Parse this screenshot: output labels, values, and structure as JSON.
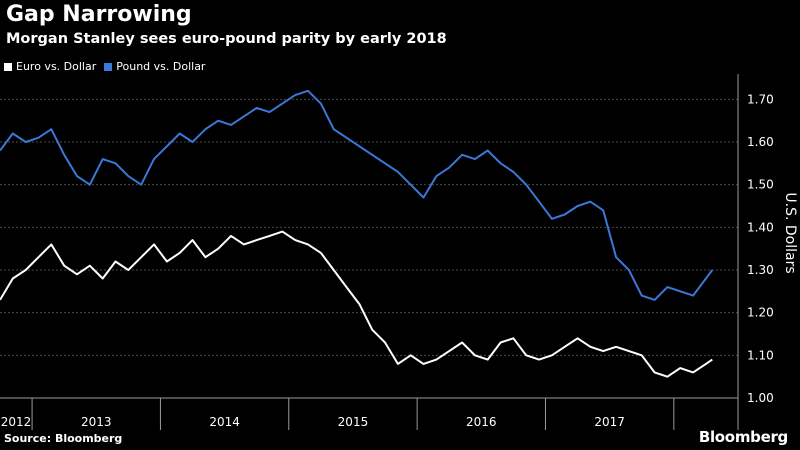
{
  "header": {
    "title": "Gap Narrowing",
    "subtitle": "Morgan Stanley sees euro-pound parity by early 2018"
  },
  "footer": {
    "source": "Source: Bloomberg",
    "brand": "Bloomberg"
  },
  "colors": {
    "background": "#000000",
    "euro": "#ffffff",
    "pound": "#3b78d8",
    "grid": "#4a4a4a"
  },
  "chart_data": {
    "type": "line",
    "title": "Gap Narrowing",
    "subtitle": "Morgan Stanley sees euro-pound parity by early 2018",
    "ylabel": "U.S. Dollars",
    "ylabel_position": "right",
    "ylim": [
      1.0,
      1.75
    ],
    "yticks": [
      "1.00",
      "1.10",
      "1.20",
      "1.30",
      "1.40",
      "1.50",
      "1.60",
      "1.70"
    ],
    "xlim": [
      2011.75,
      2017.5
    ],
    "xticks": [
      {
        "label": "2012",
        "pos": 2011.875
      },
      {
        "label": "2013",
        "pos": 2012.5
      },
      {
        "label": "2014",
        "pos": 2013.5
      },
      {
        "label": "2015",
        "pos": 2014.5
      },
      {
        "label": "2016",
        "pos": 2015.5
      },
      {
        "label": "2017",
        "pos": 2016.5
      }
    ],
    "year_boundaries": [
      2012,
      2013,
      2014,
      2015,
      2016,
      2017
    ],
    "grid": true,
    "legend_position": "top-left",
    "series": [
      {
        "name": "Euro vs. Dollar",
        "color": "#ffffff",
        "x": [
          2011.75,
          2011.85,
          2011.95,
          2012.05,
          2012.15,
          2012.25,
          2012.35,
          2012.45,
          2012.55,
          2012.65,
          2012.75,
          2012.85,
          2012.95,
          2013.05,
          2013.15,
          2013.25,
          2013.35,
          2013.45,
          2013.55,
          2013.65,
          2013.75,
          2013.85,
          2013.95,
          2014.05,
          2014.15,
          2014.25,
          2014.35,
          2014.45,
          2014.55,
          2014.65,
          2014.75,
          2014.85,
          2014.95,
          2015.05,
          2015.15,
          2015.25,
          2015.35,
          2015.45,
          2015.55,
          2015.65,
          2015.75,
          2015.85,
          2015.95,
          2016.05,
          2016.15,
          2016.25,
          2016.35,
          2016.45,
          2016.55,
          2016.65,
          2016.75,
          2016.85,
          2016.95,
          2017.05,
          2017.15,
          2017.25,
          2017.3
        ],
        "values": [
          1.23,
          1.28,
          1.3,
          1.33,
          1.36,
          1.31,
          1.29,
          1.31,
          1.28,
          1.32,
          1.3,
          1.33,
          1.36,
          1.32,
          1.34,
          1.37,
          1.33,
          1.35,
          1.38,
          1.36,
          1.37,
          1.38,
          1.39,
          1.37,
          1.36,
          1.34,
          1.3,
          1.26,
          1.22,
          1.16,
          1.13,
          1.08,
          1.1,
          1.08,
          1.09,
          1.11,
          1.13,
          1.1,
          1.09,
          1.13,
          1.14,
          1.1,
          1.09,
          1.1,
          1.12,
          1.14,
          1.12,
          1.11,
          1.12,
          1.11,
          1.1,
          1.06,
          1.05,
          1.07,
          1.06,
          1.08,
          1.09
        ]
      },
      {
        "name": "Pound vs. Dollar",
        "color": "#3b78d8",
        "x": [
          2011.75,
          2011.85,
          2011.95,
          2012.05,
          2012.15,
          2012.25,
          2012.35,
          2012.45,
          2012.55,
          2012.65,
          2012.75,
          2012.85,
          2012.95,
          2013.05,
          2013.15,
          2013.25,
          2013.35,
          2013.45,
          2013.55,
          2013.65,
          2013.75,
          2013.85,
          2013.95,
          2014.05,
          2014.15,
          2014.25,
          2014.35,
          2014.45,
          2014.55,
          2014.65,
          2014.75,
          2014.85,
          2014.95,
          2015.05,
          2015.15,
          2015.25,
          2015.35,
          2015.45,
          2015.55,
          2015.65,
          2015.75,
          2015.85,
          2015.95,
          2016.05,
          2016.15,
          2016.25,
          2016.35,
          2016.45,
          2016.55,
          2016.65,
          2016.75,
          2016.85,
          2016.95,
          2017.05,
          2017.15,
          2017.25,
          2017.3
        ],
        "values": [
          1.58,
          1.62,
          1.6,
          1.61,
          1.63,
          1.57,
          1.52,
          1.5,
          1.56,
          1.55,
          1.52,
          1.5,
          1.56,
          1.59,
          1.62,
          1.6,
          1.63,
          1.65,
          1.64,
          1.66,
          1.68,
          1.67,
          1.69,
          1.71,
          1.72,
          1.69,
          1.63,
          1.61,
          1.59,
          1.57,
          1.55,
          1.53,
          1.5,
          1.47,
          1.52,
          1.54,
          1.57,
          1.56,
          1.58,
          1.55,
          1.53,
          1.5,
          1.46,
          1.42,
          1.43,
          1.45,
          1.46,
          1.44,
          1.33,
          1.3,
          1.24,
          1.23,
          1.26,
          1.25,
          1.24,
          1.28,
          1.3
        ]
      }
    ]
  }
}
